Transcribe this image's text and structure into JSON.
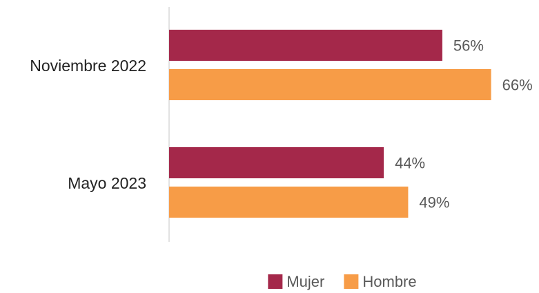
{
  "chart_data": {
    "type": "hbar",
    "categories": [
      "Noviembre 2022",
      "Mayo 2023"
    ],
    "series": [
      {
        "name": "Mujer",
        "color": "#a4284a",
        "values": [
          56,
          44
        ],
        "value_labels": [
          "56%",
          "44%"
        ]
      },
      {
        "name": "Hombre",
        "color": "#f79c47",
        "values": [
          66,
          49
        ],
        "value_labels": [
          "66%",
          "49%"
        ]
      }
    ],
    "legend": "bottom"
  }
}
